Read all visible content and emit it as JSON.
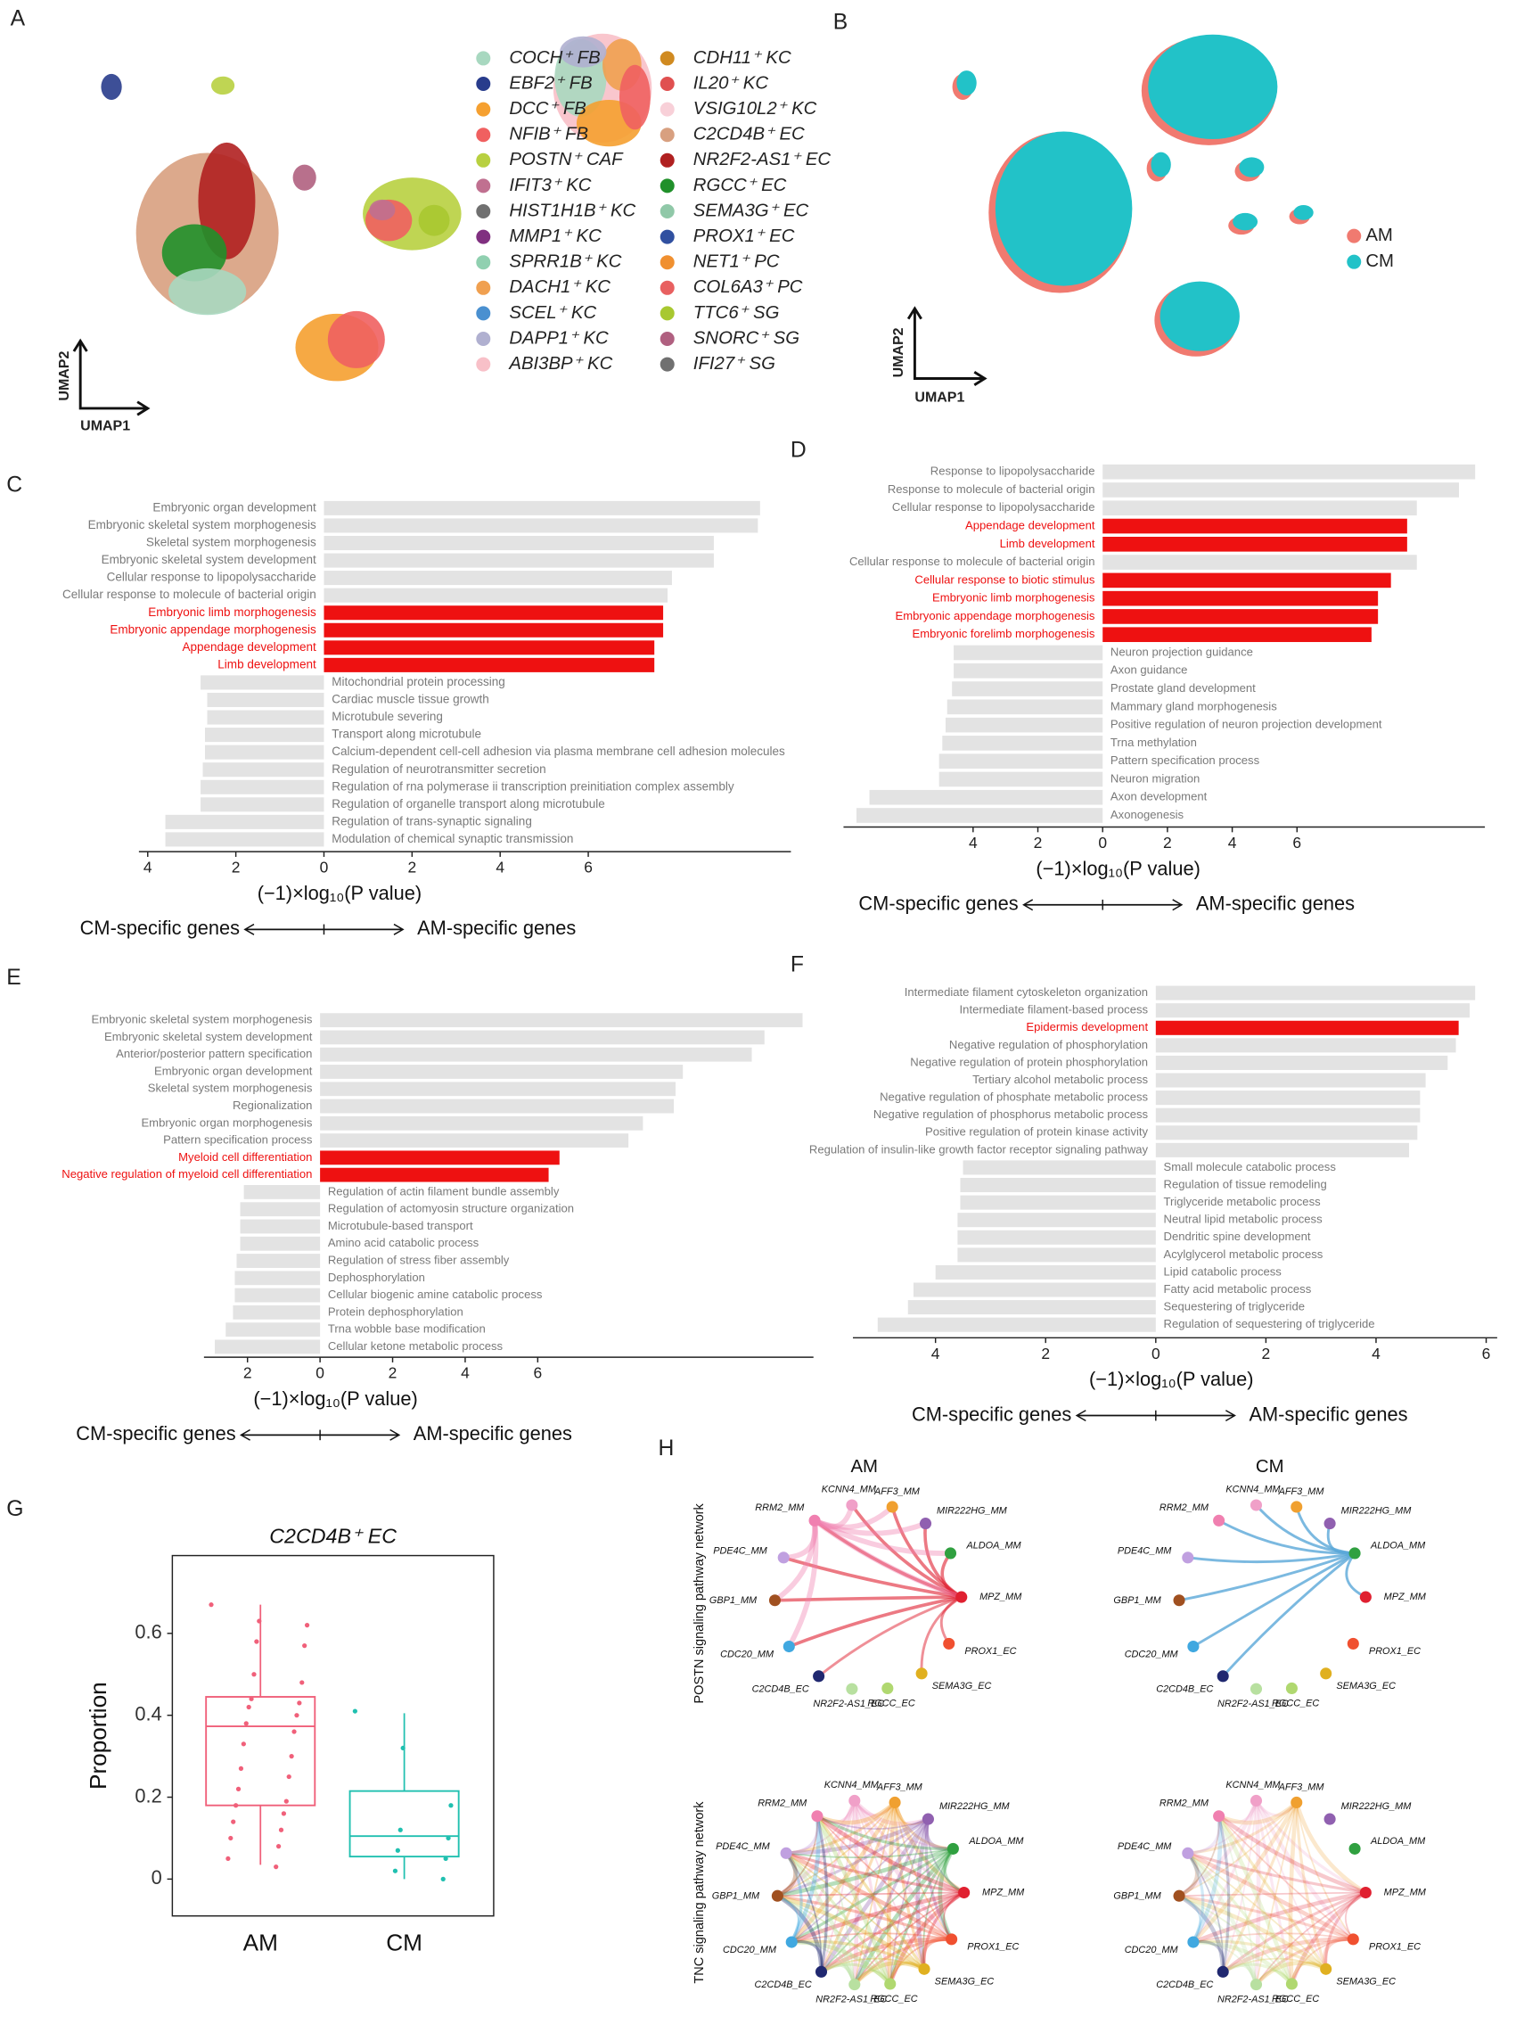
{
  "panel_labels": [
    "A",
    "B",
    "C",
    "D",
    "E",
    "F",
    "G",
    "H"
  ],
  "chart_data": [
    {
      "type": "umap",
      "xlabel": "UMAP1",
      "ylabel": "UMAP2",
      "series": [
        {
          "name": "COCH⁺ FB",
          "color": "#a8d8c0"
        },
        {
          "name": "EBF2⁺ FB",
          "color": "#283c8c"
        },
        {
          "name": "DCC⁺ FB",
          "color": "#f5a030"
        },
        {
          "name": "NFIB⁺ FB",
          "color": "#f06060"
        },
        {
          "name": "POSTN⁺ CAF",
          "color": "#b8d040"
        },
        {
          "name": "IFIT3⁺ KC",
          "color": "#c07090"
        },
        {
          "name": "HIST1H1B⁺ KC",
          "color": "#707070"
        },
        {
          "name": "MMP1⁺ KC",
          "color": "#803080"
        },
        {
          "name": "SPRR1B⁺ KC",
          "color": "#90d0b0"
        },
        {
          "name": "DACH1⁺ KC",
          "color": "#f0a050"
        },
        {
          "name": "SCEL⁺ KC",
          "color": "#4a90d0"
        },
        {
          "name": "DAPP1⁺ KC",
          "color": "#b0b0d0"
        },
        {
          "name": "ABI3BP⁺ KC",
          "color": "#f8c0c8"
        },
        {
          "name": "CDH11⁺ KC",
          "color": "#d08a20"
        },
        {
          "name": "IL20⁺ KC",
          "color": "#e05050"
        },
        {
          "name": "VSIG10L2⁺ KC",
          "color": "#f8d0d8"
        },
        {
          "name": "C2CD4B⁺ EC",
          "color": "#d8a080"
        },
        {
          "name": "NR2F2-AS1⁺ EC",
          "color": "#b02020"
        },
        {
          "name": "RGCC⁺ EC",
          "color": "#20902a"
        },
        {
          "name": "SEMA3G⁺ EC",
          "color": "#90c8a8"
        },
        {
          "name": "PROX1⁺ EC",
          "color": "#3050a0"
        },
        {
          "name": "NET1⁺ PC",
          "color": "#f09030"
        },
        {
          "name": "COL6A3⁺ PC",
          "color": "#e86060"
        },
        {
          "name": "TTC6⁺ SG",
          "color": "#a8c830"
        },
        {
          "name": "SNORC⁺ SG",
          "color": "#b06080"
        },
        {
          "name": "IFI27⁺ SG",
          "color": "#707070"
        }
      ]
    },
    {
      "type": "umap",
      "xlabel": "UMAP1",
      "ylabel": "UMAP2",
      "series": [
        {
          "name": "AM",
          "color": "#f07a70"
        },
        {
          "name": "CM",
          "color": "#22c2c8"
        }
      ]
    },
    {
      "type": "bar",
      "xlabel": "(−1)×log₁₀(P value)",
      "left_label": "CM-specific genes",
      "right_label": "AM-specific genes",
      "categories": [
        "Embryonic organ development",
        "Embryonic skeletal system morphogenesis",
        "Skeletal system morphogenesis",
        "Embryonic skeletal system development",
        "Cellular response to lipopolysaccharide",
        "Cellular response to molecule of bacterial origin",
        "Embryonic limb morphogenesis",
        "Embryonic appendage morphogenesis",
        "Appendage development",
        "Limb development",
        "Mitochondrial protein processing",
        "Cardiac muscle tissue growth",
        "Microtubule severing",
        "Transport along microtubule",
        "Calcium-dependent cell-cell adhesion via plasma membrane cell adhesion molecules",
        "Regulation of neurotransmitter secretion",
        "Regulation of rna polymerase ii transcription preinitiation complex assembly",
        "Regulation of organelle transport along microtubule",
        "Regulation of trans-synaptic signaling",
        "Modulation of chemical synaptic transmission"
      ],
      "values": [
        9.9,
        9.85,
        8.85,
        8.85,
        7.9,
        7.8,
        7.7,
        7.7,
        7.5,
        7.5,
        -2.8,
        -2.65,
        -2.65,
        -2.7,
        -2.7,
        -2.75,
        -2.8,
        -2.8,
        -3.6,
        -3.6
      ],
      "colors": [
        "#e3e3e3",
        "#e3e3e3",
        "#e3e3e3",
        "#e3e3e3",
        "#e3e3e3",
        "#e3e3e3",
        "#ee1111",
        "#ee1111",
        "#ee1111",
        "#ee1111",
        "#e3e3e3",
        "#e3e3e3",
        "#e3e3e3",
        "#e3e3e3",
        "#e3e3e3",
        "#e3e3e3",
        "#e3e3e3",
        "#e3e3e3",
        "#e3e3e3",
        "#e3e3e3"
      ],
      "xlim": [
        -4.2,
        10.6
      ],
      "xticks": [
        {
          "value": -4,
          "label": "4"
        },
        {
          "value": -2,
          "label": "2"
        },
        0,
        2,
        4,
        6
      ]
    },
    {
      "type": "bar",
      "xlabel": "(−1)×log₁₀(P value)",
      "left_label": "CM-specific genes",
      "right_label": "AM-specific genes",
      "categories": [
        "Response to lipopolysaccharide",
        "Response to molecule of bacterial origin",
        "Cellular response to lipopolysaccharide",
        "Appendage development",
        "Limb development",
        "Cellular response to molecule of bacterial origin",
        "Cellular response to biotic stimulus",
        "Embryonic limb morphogenesis",
        "Embryonic appendage morphogenesis",
        "Embryonic forelimb morphogenesis",
        "Neuron projection guidance",
        "Axon guidance",
        "Prostate gland development",
        "Mammary gland morphogenesis",
        "Positive regulation of neuron projection development",
        "Trna methylation",
        "Pattern specification process",
        "Neuron migration",
        "Axon development",
        "Axonogenesis"
      ],
      "values": [
        11.5,
        11.0,
        9.7,
        9.4,
        9.4,
        9.7,
        8.9,
        8.5,
        8.5,
        8.3,
        -4.6,
        -4.6,
        -4.65,
        -4.8,
        -4.85,
        -4.95,
        -5.05,
        -5.05,
        -7.2,
        -7.6
      ],
      "colors": [
        "#e3e3e3",
        "#e3e3e3",
        "#e3e3e3",
        "#ee1111",
        "#ee1111",
        "#e3e3e3",
        "#ee1111",
        "#ee1111",
        "#ee1111",
        "#ee1111",
        "#e3e3e3",
        "#e3e3e3",
        "#e3e3e3",
        "#e3e3e3",
        "#e3e3e3",
        "#e3e3e3",
        "#e3e3e3",
        "#e3e3e3",
        "#e3e3e3",
        "#e3e3e3"
      ],
      "xlim": [
        -8,
        11.8
      ],
      "xticks": [
        {
          "value": -4,
          "label": "4"
        },
        {
          "value": -2,
          "label": "2"
        },
        0,
        2,
        4,
        6
      ]
    },
    {
      "type": "bar",
      "xlabel": "(−1)×log₁₀(P value)",
      "left_label": "CM-specific genes",
      "right_label": "AM-specific genes",
      "categories": [
        "Embryonic skeletal system morphogenesis",
        "Embryonic skeletal system development",
        "Anterior/posterior pattern specification",
        "Embryonic organ development",
        "Skeletal system morphogenesis",
        "Regionalization",
        "Embryonic organ morphogenesis",
        "Pattern specification process",
        "Myeloid cell differentiation",
        "Negative regulation of myeloid cell differentiation",
        "Regulation of actin filament bundle assembly",
        "Regulation of actomyosin structure organization",
        "Microtubule-based transport",
        "Amino acid catabolic process",
        "Regulation of stress fiber assembly",
        "Dephosphorylation",
        "Cellular biogenic amine catabolic process",
        "Protein dephosphorylation",
        "Trna wobble base modification",
        "Cellular ketone metabolic process"
      ],
      "values": [
        13.3,
        12.25,
        11.9,
        10.0,
        9.8,
        9.75,
        8.9,
        8.5,
        6.6,
        6.3,
        -2.1,
        -2.2,
        -2.2,
        -2.2,
        -2.3,
        -2.35,
        -2.35,
        -2.4,
        -2.6,
        -2.9
      ],
      "colors": [
        "#e3e3e3",
        "#e3e3e3",
        "#e3e3e3",
        "#e3e3e3",
        "#e3e3e3",
        "#e3e3e3",
        "#e3e3e3",
        "#e3e3e3",
        "#ee1111",
        "#ee1111",
        "#e3e3e3",
        "#e3e3e3",
        "#e3e3e3",
        "#e3e3e3",
        "#e3e3e3",
        "#e3e3e3",
        "#e3e3e3",
        "#e3e3e3",
        "#e3e3e3",
        "#e3e3e3"
      ],
      "xlim": [
        -3.2,
        13.6
      ],
      "xticks": [
        {
          "value": -2,
          "label": "2"
        },
        0,
        2,
        4,
        6
      ]
    },
    {
      "type": "bar",
      "xlabel": "(−1)×log₁₀(P value)",
      "left_label": "CM-specific genes",
      "right_label": "AM-specific genes",
      "categories": [
        "Intermediate filament cytoskeleton organization",
        "Intermediate filament-based process",
        "Epidermis development",
        "Negative regulation of phosphorylation",
        "Negative regulation of protein phosphorylation",
        "Tertiary alcohol metabolic process",
        "Negative regulation of phosphate metabolic process",
        "Negative regulation of phosphorus metabolic process",
        "Positive regulation of protein kinase activity",
        "Regulation of insulin-like growth factor receptor signaling pathway",
        "Small molecule catabolic process",
        "Regulation of tissue remodeling",
        "Triglyceride metabolic process",
        "Neutral lipid metabolic process",
        "Dendritic spine development",
        "Acylglycerol metabolic process",
        "Lipid catabolic process",
        "Fatty acid metabolic process",
        "Sequestering of triglyceride",
        "Regulation of sequestering of triglyceride"
      ],
      "values": [
        5.8,
        5.7,
        5.5,
        5.45,
        5.3,
        4.9,
        4.8,
        4.8,
        4.75,
        4.6,
        -3.5,
        -3.55,
        -3.55,
        -3.6,
        -3.6,
        -3.6,
        -4.0,
        -4.4,
        -4.5,
        -5.05
      ],
      "colors": [
        "#e3e3e3",
        "#e3e3e3",
        "#ee1111",
        "#e3e3e3",
        "#e3e3e3",
        "#e3e3e3",
        "#e3e3e3",
        "#e3e3e3",
        "#e3e3e3",
        "#e3e3e3",
        "#e3e3e3",
        "#e3e3e3",
        "#e3e3e3",
        "#e3e3e3",
        "#e3e3e3",
        "#e3e3e3",
        "#e3e3e3",
        "#e3e3e3",
        "#e3e3e3",
        "#e3e3e3"
      ],
      "xlim": [
        -5.5,
        6.2
      ],
      "xticks": [
        {
          "value": -4,
          "label": "4"
        },
        {
          "value": -2,
          "label": "2"
        },
        0,
        2,
        4,
        6
      ]
    },
    {
      "type": "box",
      "title": "C2CD4B⁺ EC",
      "ylabel": "Proportion",
      "categories": [
        "AM",
        "CM"
      ],
      "boxes": [
        {
          "color": "#f0607a",
          "whisker_low": 0.035,
          "q1": 0.18,
          "median": 0.373,
          "q3": 0.445,
          "whisker_high": 0.67,
          "points": [
            0.67,
            0.63,
            0.62,
            0.58,
            0.57,
            0.5,
            0.48,
            0.44,
            0.43,
            0.42,
            0.4,
            0.38,
            0.36,
            0.33,
            0.3,
            0.27,
            0.25,
            0.22,
            0.19,
            0.18,
            0.16,
            0.14,
            0.12,
            0.1,
            0.08,
            0.05,
            0.03
          ]
        },
        {
          "color": "#20c0b0",
          "whisker_low": 0.0,
          "q1": 0.055,
          "median": 0.105,
          "q3": 0.215,
          "whisker_high": 0.405,
          "points": [
            0.41,
            0.32,
            0.18,
            0.12,
            0.1,
            0.07,
            0.05,
            0.02,
            0.0
          ]
        }
      ],
      "ylim": [
        -0.09,
        0.79
      ],
      "yticks": [
        0,
        0.2,
        0.4,
        0.6
      ]
    }
  ],
  "network": {
    "columns": [
      "AM",
      "CM"
    ],
    "rows": [
      "POSTN signaling pathway network",
      "TNC signaling pathway network"
    ],
    "nodes": [
      {
        "label": "KCNN4_MM",
        "color": "#f0a0c8"
      },
      {
        "label": "AFF3_MM",
        "color": "#f0a030"
      },
      {
        "label": "MIR222HG_MM",
        "color": "#9060b0"
      },
      {
        "label": "ALDOA_MM",
        "color": "#30a040"
      },
      {
        "label": "MPZ_MM",
        "color": "#e02030"
      },
      {
        "label": "PROX1_EC",
        "color": "#f05030"
      },
      {
        "label": "SEMA3G_EC",
        "color": "#e0b020"
      },
      {
        "label": "RGCC_EC",
        "color": "#b0d870"
      },
      {
        "label": "NR2F2-AS1_EC",
        "color": "#b8e0a0"
      },
      {
        "label": "C2CD4B_EC",
        "color": "#202870"
      },
      {
        "label": "CDC20_MM",
        "color": "#40a8e0"
      },
      {
        "label": "GBP1_MM",
        "color": "#a05020"
      },
      {
        "label": "PDE4C_MM",
        "color": "#c0a0e0"
      },
      {
        "label": "RRM2_MM",
        "color": "#f080b0"
      }
    ]
  }
}
